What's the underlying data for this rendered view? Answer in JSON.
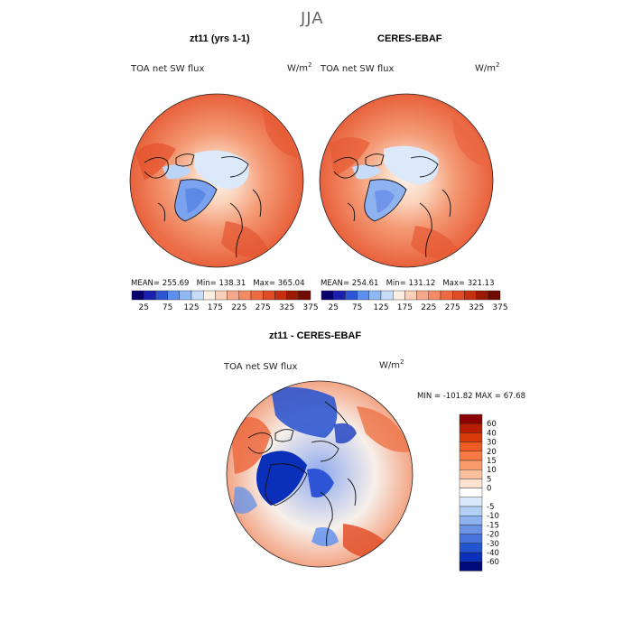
{
  "page": {
    "season": "JJA"
  },
  "panels": [
    {
      "title": "zt11 (yrs 1-1)",
      "variable": "TOA net SW flux",
      "units_base": "W/m",
      "units_exp": "2",
      "mean_label": "MEAN=",
      "mean": "255.69",
      "min_label": "Min=",
      "min": "138.31",
      "max_label": "Max=",
      "max": "365.04"
    },
    {
      "title": "CERES-EBAF",
      "variable": "TOA net SW flux",
      "units_base": "W/m",
      "units_exp": "2",
      "mean_label": "MEAN=",
      "mean": "254.61",
      "min_label": "Min=",
      "min": "131.12",
      "max_label": "Max=",
      "max": "321.13"
    }
  ],
  "diff": {
    "title": "zt11 - CERES-EBAF",
    "variable": "TOA net SW flux",
    "units_base": "W/m",
    "units_exp": "2",
    "stats": "MIN = -101.82 MAX =  67.68"
  },
  "chart_data": [
    {
      "type": "heatmap",
      "title": "zt11 (yrs 1-1)",
      "projection": "north polar stereographic",
      "variable": "TOA net SW flux",
      "units": "W/m2",
      "colorbar": {
        "orientation": "horizontal",
        "tick_labels": [
          "25",
          "75",
          "125",
          "175",
          "225",
          "275",
          "325",
          "375"
        ],
        "colors": [
          "#08006b",
          "#1a1fb0",
          "#2e55d6",
          "#5b8ff0",
          "#8fb8f5",
          "#c7dcf8",
          "#fdeee2",
          "#fbd0b8",
          "#f7a88a",
          "#f38a63",
          "#ee6a43",
          "#e04a26",
          "#c7300f",
          "#9c1a05",
          "#6e0a00"
        ]
      },
      "stats": {
        "mean": 255.69,
        "min": 138.31,
        "max": 365.04
      }
    },
    {
      "type": "heatmap",
      "title": "CERES-EBAF",
      "projection": "north polar stereographic",
      "variable": "TOA net SW flux",
      "units": "W/m2",
      "colorbar": {
        "orientation": "horizontal",
        "tick_labels": [
          "25",
          "75",
          "125",
          "175",
          "225",
          "275",
          "325",
          "375"
        ],
        "colors": [
          "#08006b",
          "#1a1fb0",
          "#2e55d6",
          "#5b8ff0",
          "#8fb8f5",
          "#c7dcf8",
          "#fdeee2",
          "#fbd0b8",
          "#f7a88a",
          "#f38a63",
          "#ee6a43",
          "#e04a26",
          "#c7300f",
          "#9c1a05",
          "#6e0a00"
        ]
      },
      "stats": {
        "mean": 254.61,
        "min": 131.12,
        "max": 321.13
      }
    },
    {
      "type": "heatmap",
      "title": "zt11 - CERES-EBAF",
      "projection": "north polar stereographic",
      "variable": "TOA net SW flux",
      "units": "W/m2",
      "colorbar": {
        "orientation": "vertical",
        "tick_labels": [
          "60",
          "40",
          "30",
          "20",
          "15",
          "10",
          "5",
          "0",
          "-5",
          "-10",
          "-15",
          "-20",
          "-30",
          "-40",
          "-60"
        ],
        "colors": [
          "#8b0000",
          "#b81d02",
          "#d93a0c",
          "#ee5a24",
          "#f57a44",
          "#f89a6a",
          "#fbbf9c",
          "#fde2d0",
          "#ffffff",
          "#d9e9fb",
          "#b4cff5",
          "#8eb2ef",
          "#6a93e6",
          "#4674dc",
          "#2455d0",
          "#0a2fb8",
          "#000a7a"
        ]
      },
      "stats": {
        "min": -101.82,
        "max": 67.68
      }
    }
  ]
}
